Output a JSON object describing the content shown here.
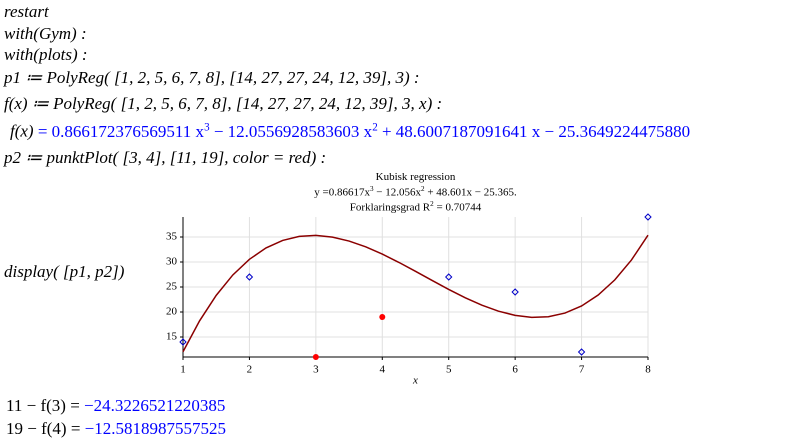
{
  "lines": [
    "restart",
    "with(Gym) :",
    "with(plots) :",
    "p1 ≔ PolyReg( [1, 2, 5, 6, 7, 8], [14, 27, 27, 24, 12, 39], 3) :",
    "f(x) ≔ PolyReg( [1, 2, 5, 6, 7, 8], [14, 27, 27, 24, 12, 39], 3, x) :"
  ],
  "output": {
    "lhs": "f(x)",
    "parts": [
      "= 0.866172376569511 x",
      "3",
      " − 12.0556928583603 x",
      "2",
      " + 48.6007187091641 x − 25.3649224475880"
    ]
  },
  "line_p2": "p2 ≔ punktPlot( [3, 4], [11, 19], color = red) :",
  "display_command": "display( [p1, p2])",
  "chart_data": {
    "type": "scatter",
    "title": "Kubisk regression",
    "subtitle_parts": [
      "y =0.86617x",
      "3",
      " − 12.056x",
      "2",
      " + 48.601x − 25.365."
    ],
    "r2_parts": [
      "Forklaringsgrad R",
      "2",
      " = 0.70744"
    ],
    "xlabel": "x",
    "xlim": [
      1,
      8
    ],
    "ylim": [
      11,
      39
    ],
    "xticks": [
      1,
      2,
      3,
      4,
      5,
      6,
      7,
      8
    ],
    "yticks": [
      15,
      20,
      25,
      30,
      35
    ],
    "grid": true,
    "series": [
      {
        "color": "#8b0000",
        "mode": "line",
        "x": [
          1,
          1.25,
          1.5,
          1.75,
          2,
          2.25,
          2.5,
          2.75,
          3,
          3.25,
          3.5,
          3.75,
          4,
          4.25,
          4.5,
          4.75,
          5,
          5.25,
          5.5,
          5.75,
          6,
          6.25,
          6.5,
          6.75,
          7,
          7.25,
          7.5,
          7.75,
          8
        ],
        "values": [
          12.05,
          18.24,
          23.33,
          27.41,
          30.54,
          32.82,
          34.32,
          35.13,
          35.32,
          34.98,
          34.19,
          33.03,
          31.58,
          29.92,
          28.14,
          26.31,
          24.52,
          22.84,
          21.36,
          20.16,
          19.33,
          18.93,
          19.06,
          19.79,
          21.21,
          23.39,
          26.42,
          30.38,
          35.36
        ]
      },
      {
        "color": "#0000c8",
        "mode": "marker",
        "marker": "diamond",
        "x": [
          1,
          2,
          5,
          6,
          7,
          8
        ],
        "values": [
          14,
          27,
          27,
          24,
          12,
          39
        ]
      },
      {
        "color": "#ff0000",
        "mode": "marker",
        "marker": "circle",
        "x": [
          3,
          4
        ],
        "values": [
          11,
          19
        ]
      }
    ]
  },
  "results": [
    {
      "expr": "11 − f(3)",
      "eq": "=",
      "value": "−24.3226521220385"
    },
    {
      "expr": "19 − f(4)",
      "eq": "=",
      "value": "−12.5818987557525"
    }
  ]
}
